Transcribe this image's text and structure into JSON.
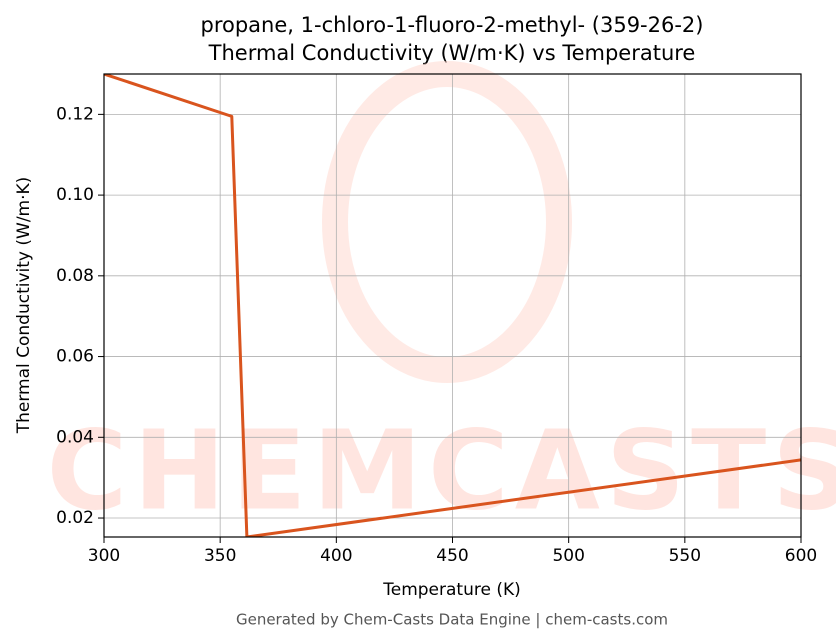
{
  "chart_data": {
    "type": "line",
    "title": "propane, 1-chloro-1-fluoro-2-methyl- (359-26-2)",
    "subtitle": "Thermal Conductivity (W/m·K) vs Temperature",
    "x_label": "Temperature (K)",
    "y_label": "Thermal Conductivity (W/m·K)",
    "watermark": "CHEMCASTS",
    "footer": "Generated by Chem-Casts Data Engine | chem-casts.com",
    "x": [
      300,
      355,
      361.5,
      600
    ],
    "series": [
      {
        "name": "Thermal Conductivity",
        "color": "#d9541e",
        "values": [
          0.13,
          0.1195,
          0.0153,
          0.0344
        ]
      }
    ],
    "xlim": [
      300,
      600
    ],
    "ylim": [
      0.0153,
      0.13
    ],
    "xticks": [
      300,
      350,
      400,
      450,
      500,
      550,
      600
    ],
    "yticks": [
      0.02,
      0.04,
      0.06,
      0.08,
      {
        "value": 0.1,
        "label": "0.10"
      },
      0.12
    ],
    "grid": true
  }
}
